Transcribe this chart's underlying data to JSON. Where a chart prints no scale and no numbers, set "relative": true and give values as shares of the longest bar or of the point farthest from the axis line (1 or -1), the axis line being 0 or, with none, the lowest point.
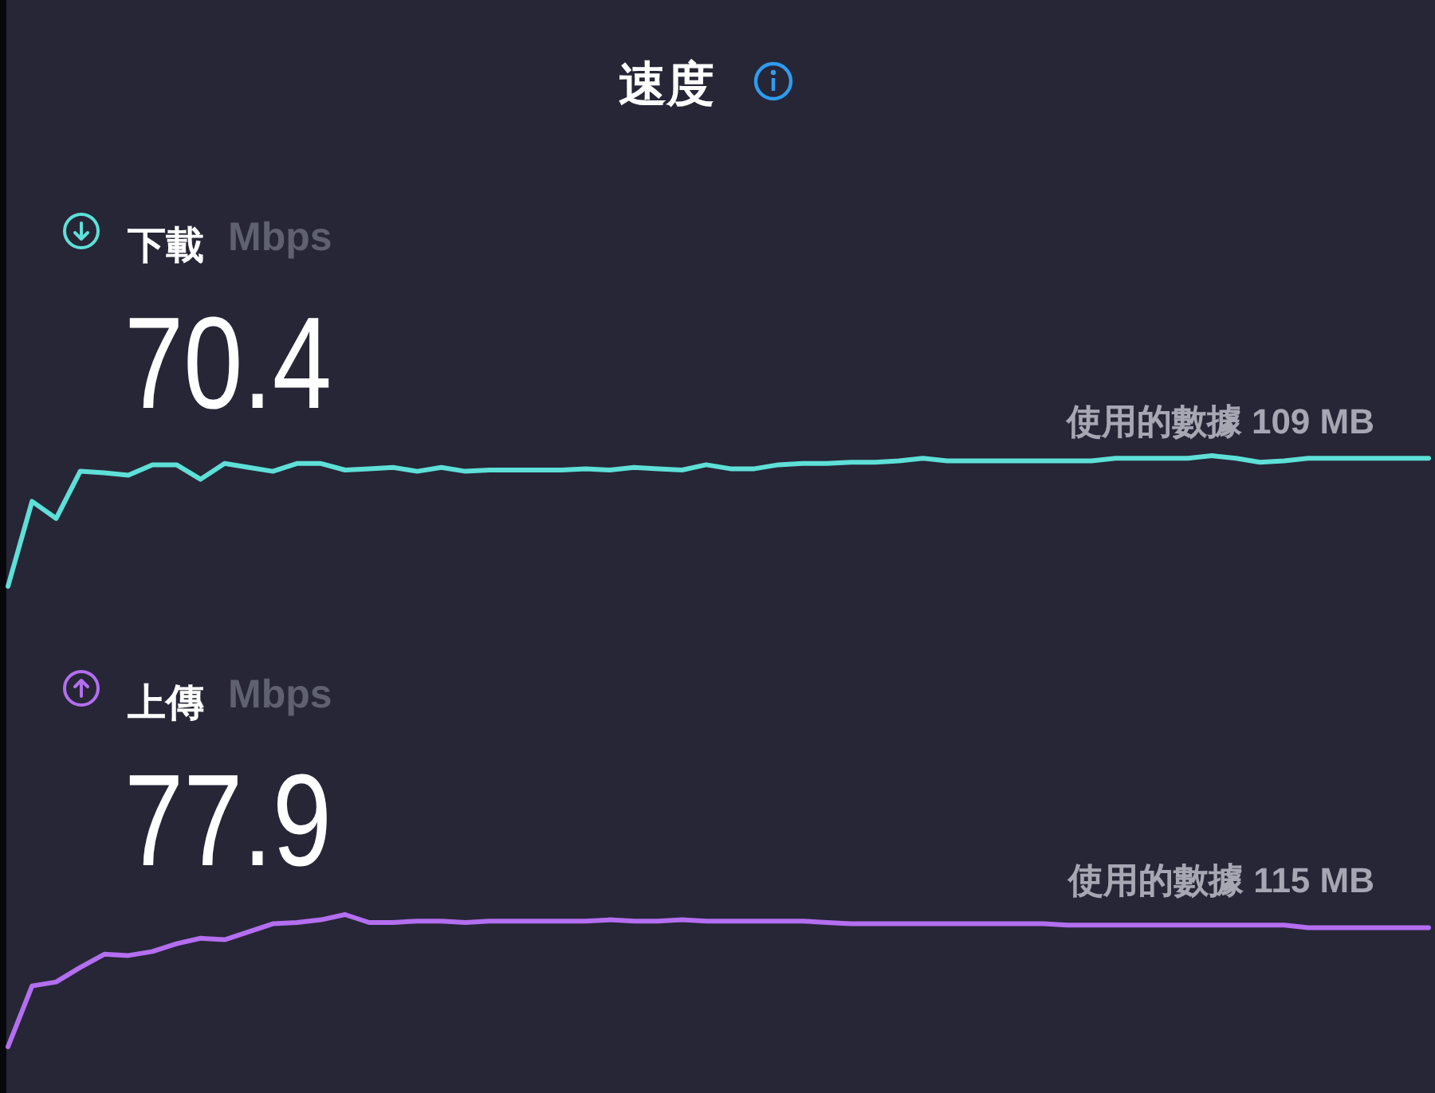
{
  "chart_data": [
    {
      "type": "line",
      "title": "速度",
      "subtitle": "下載",
      "ylabel": "Mbps",
      "annotations": [
        "70.4",
        "使用的數據 109 MB"
      ],
      "relative": true,
      "categories": [
        null,
        null,
        null,
        null,
        null,
        null,
        null,
        null,
        null,
        null,
        null,
        null,
        null,
        null,
        null,
        null,
        null,
        null,
        null,
        null,
        null,
        null,
        null,
        null,
        null,
        null,
        null,
        null,
        null,
        null,
        null,
        null,
        null,
        null,
        null,
        null,
        null,
        null,
        null,
        null,
        null,
        null,
        null,
        null,
        null,
        null,
        null,
        null,
        null,
        null,
        null,
        null,
        null,
        null,
        null,
        null,
        null,
        null,
        null,
        null
      ],
      "series": [
        {
          "color": "#5ee0d8",
          "values": [
            0,
            0.65,
            0.52,
            0.88,
            0.87,
            0.85,
            0.93,
            0.93,
            0.82,
            0.94,
            0.91,
            0.88,
            0.94,
            0.94,
            0.89,
            0.9,
            0.91,
            0.88,
            0.91,
            0.88,
            0.89,
            0.89,
            0.89,
            0.89,
            0.9,
            0.89,
            0.91,
            0.9,
            0.89,
            0.93,
            0.9,
            0.9,
            0.93,
            0.94,
            0.94,
            0.95,
            0.95,
            0.96,
            0.98,
            0.96,
            0.96,
            0.96,
            0.96,
            0.96,
            0.96,
            0.96,
            0.98,
            0.98,
            0.98,
            0.98,
            1.0,
            0.98,
            0.95,
            0.96,
            0.98,
            0.98,
            0.98,
            0.98,
            0.98,
            0.98
          ]
        }
      ]
    },
    {
      "type": "line",
      "subtitle": "上傳",
      "ylabel": "Mbps",
      "annotations": [
        "77.9",
        "使用的數據 115 MB"
      ],
      "relative": true,
      "categories": [
        null,
        null,
        null,
        null,
        null,
        null,
        null,
        null,
        null,
        null,
        null,
        null,
        null,
        null,
        null,
        null,
        null,
        null,
        null,
        null,
        null,
        null,
        null,
        null,
        null,
        null,
        null,
        null,
        null,
        null,
        null,
        null,
        null,
        null,
        null,
        null,
        null,
        null,
        null,
        null,
        null,
        null,
        null,
        null,
        null,
        null,
        null,
        null,
        null,
        null,
        null,
        null,
        null,
        null,
        null,
        null,
        null,
        null,
        null,
        null
      ],
      "series": [
        {
          "color": "#b46ef0",
          "values": [
            0,
            0.46,
            0.49,
            0.6,
            0.7,
            0.69,
            0.72,
            0.78,
            0.82,
            0.81,
            0.87,
            0.93,
            0.94,
            0.96,
            1.0,
            0.94,
            0.94,
            0.95,
            0.95,
            0.94,
            0.95,
            0.95,
            0.95,
            0.95,
            0.95,
            0.96,
            0.95,
            0.95,
            0.96,
            0.95,
            0.95,
            0.95,
            0.95,
            0.95,
            0.94,
            0.93,
            0.93,
            0.93,
            0.93,
            0.93,
            0.93,
            0.93,
            0.93,
            0.93,
            0.92,
            0.92,
            0.92,
            0.92,
            0.92,
            0.92,
            0.92,
            0.92,
            0.92,
            0.92,
            0.9,
            0.9,
            0.9,
            0.9,
            0.9,
            0.9
          ]
        }
      ]
    }
  ]
}
